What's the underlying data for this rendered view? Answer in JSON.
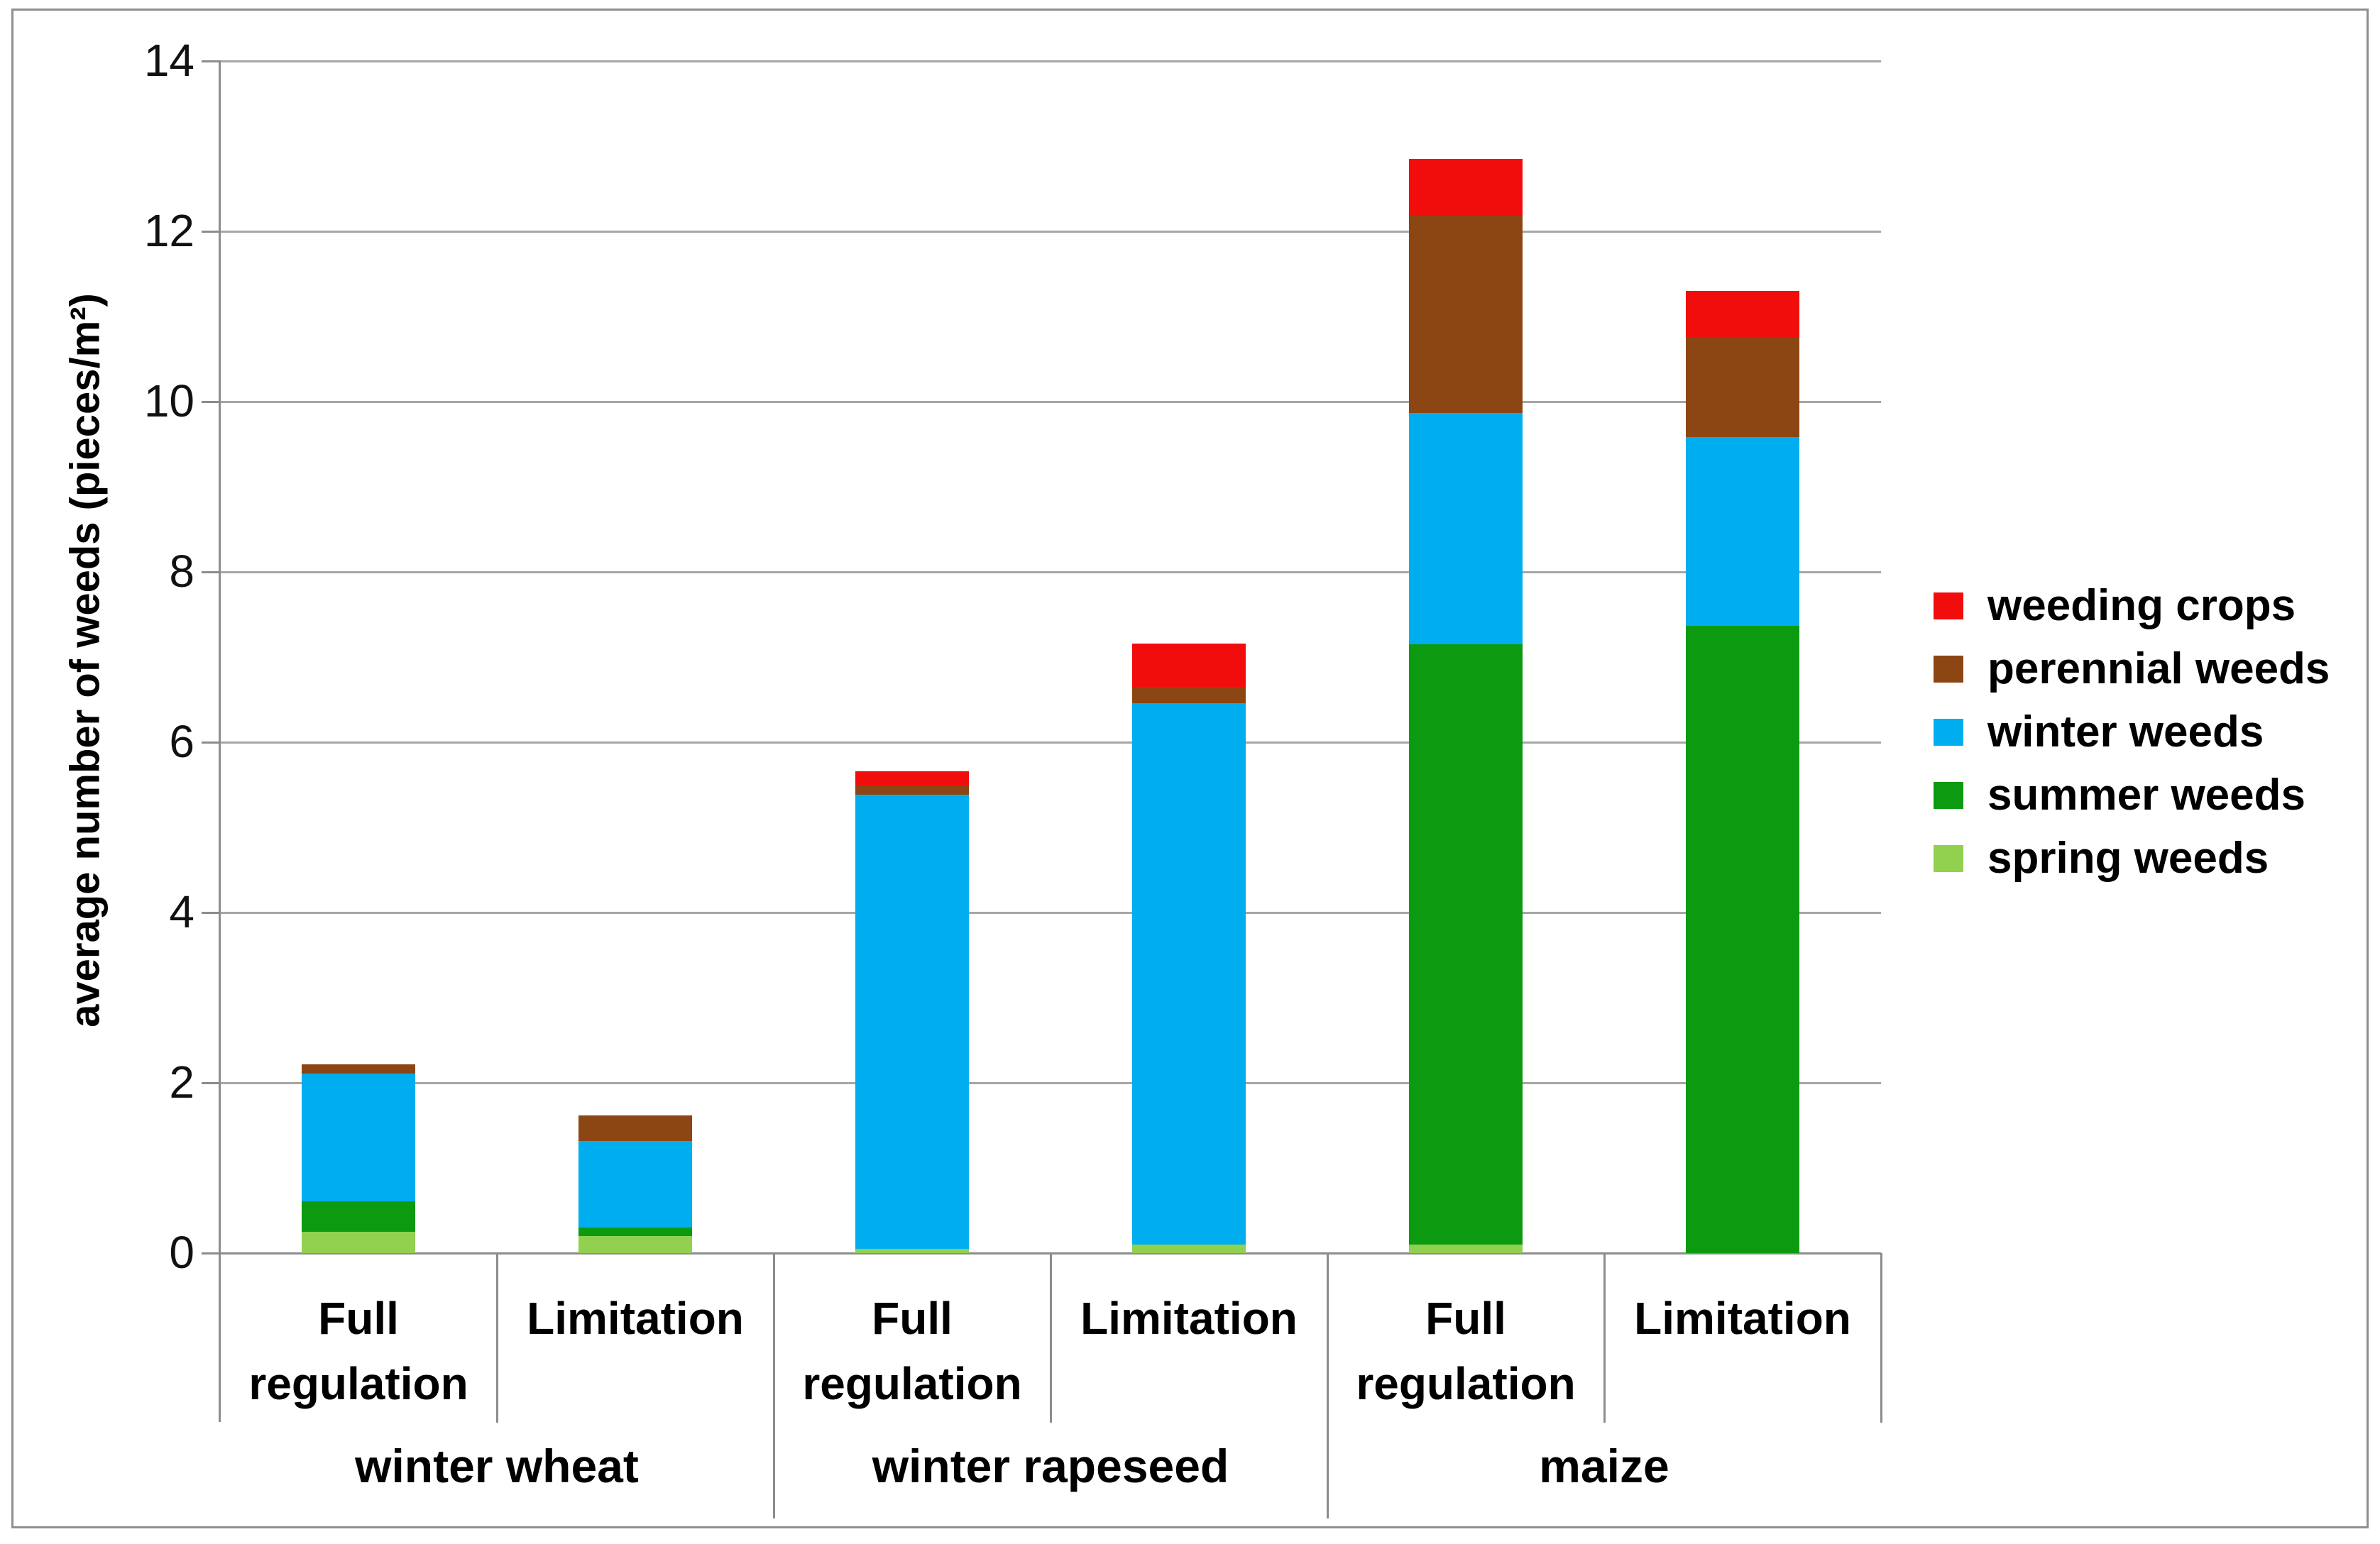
{
  "chart_data": {
    "type": "bar",
    "stacked": true,
    "title": "",
    "ylabel": "average number of weeds (pieces/m²)",
    "xlabel": "",
    "ylim": [
      0,
      14
    ],
    "yticks": [
      0,
      2,
      4,
      6,
      8,
      10,
      12,
      14
    ],
    "grid": "horizontal",
    "legend_position": "right",
    "groups": [
      {
        "label": "winter wheat",
        "span": [
          0,
          2
        ]
      },
      {
        "label": "winter rapeseed",
        "span": [
          2,
          4
        ]
      },
      {
        "label": "maize",
        "span": [
          4,
          6
        ]
      }
    ],
    "categories": [
      "Full regulation",
      "Limitation",
      "Full regulation",
      "Limitation",
      "Full regulation",
      "Limitation"
    ],
    "category_line_break": "Full|regulation",
    "series": [
      {
        "name": "spring weeds",
        "color": "#92D050",
        "values": [
          0.25,
          0.2,
          0.05,
          0.1,
          0.1,
          0.0
        ]
      },
      {
        "name": "summer weeds",
        "color": "#0C9A10",
        "values": [
          0.36,
          0.1,
          0.0,
          0.0,
          7.05,
          7.37
        ]
      },
      {
        "name": "winter weeds",
        "color": "#00AEEF",
        "values": [
          1.5,
          1.02,
          5.33,
          6.36,
          2.72,
          2.21
        ]
      },
      {
        "name": "perennial weeds",
        "color": "#8C4614",
        "values": [
          0.11,
          0.3,
          0.1,
          0.19,
          2.31,
          1.17
        ]
      },
      {
        "name": "weeding crops",
        "color": "#F20D0D",
        "values": [
          0.0,
          0.0,
          0.18,
          0.51,
          0.67,
          0.55
        ]
      }
    ],
    "totals": [
      2.22,
      1.62,
      5.66,
      7.16,
      12.85,
      11.3
    ],
    "legend_order_top_to_bottom": [
      "weeding crops",
      "perennial weeds",
      "winter weeds",
      "summer weeds",
      "spring weeds"
    ]
  },
  "style_colors": {
    "axis": "#8c8c8c",
    "gridline": "#a6a6a6",
    "text": "#000000",
    "background": "#ffffff"
  }
}
